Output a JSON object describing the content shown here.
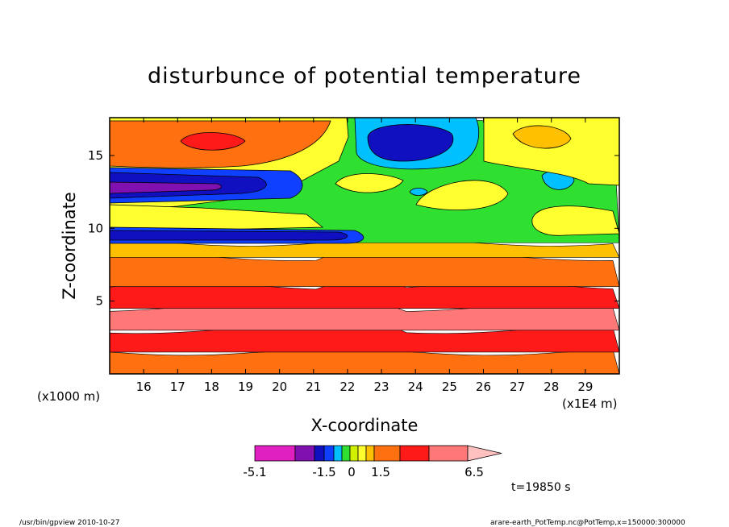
{
  "chart_data": {
    "type": "heatmap",
    "title": "disturbunce of potential temperature",
    "xlabel": "X-coordinate",
    "ylabel": "Z-coordinate",
    "x_unit": "(x1E4 m)",
    "y_unit": "(x1000 m)",
    "xlim": [
      15.0,
      30.0
    ],
    "ylim": [
      0.0,
      17.6
    ],
    "x_ticks": [
      "16",
      "17",
      "18",
      "19",
      "20",
      "21",
      "22",
      "23",
      "24",
      "25",
      "26",
      "27",
      "28",
      "29"
    ],
    "x_tick_values": [
      16,
      17,
      18,
      19,
      20,
      21,
      22,
      23,
      24,
      25,
      26,
      27,
      28,
      29
    ],
    "y_ticks": [
      "5",
      "10",
      "15"
    ],
    "y_tick_values": [
      5,
      10,
      15
    ],
    "colorbar": {
      "labels": [
        "-5.1",
        "-1.5",
        "0",
        "1.5",
        "6.5"
      ],
      "label_values": [
        -5.1,
        -1.5,
        0,
        1.5,
        6.5
      ],
      "colors": [
        "#e020c0",
        "#8010b0",
        "#1010c0",
        "#1040ff",
        "#00c0ff",
        "#30e030",
        "#d0f000",
        "#ffff30",
        "#ffc000",
        "#ff7010",
        "#ff1a1a",
        "#ff7878",
        "#ffc0c0"
      ]
    },
    "bands": [
      {
        "z0": 0.0,
        "z1": 1.5,
        "color": "#ff7010",
        "level": "orange"
      },
      {
        "z0": 1.5,
        "z1": 3.0,
        "color": "#ff1a1a",
        "level": "red"
      },
      {
        "z0": 3.0,
        "z1": 4.5,
        "color": "#ff7878",
        "level": "pink"
      },
      {
        "z0": 4.5,
        "z1": 6.0,
        "color": "#ff1a1a",
        "level": "red"
      },
      {
        "z0": 6.0,
        "z1": 8.0,
        "color": "#ff7010",
        "level": "orange"
      },
      {
        "z0": 8.0,
        "z1": 9.0,
        "color": "#ffc000",
        "level": "light-orange"
      },
      {
        "z0": 9.0,
        "z1": 17.6,
        "color": "#30e030",
        "level": "green"
      }
    ],
    "anomalies": [
      {
        "x": 20.5,
        "z": 16.0,
        "color": "#ff7010"
      },
      {
        "x": 18.2,
        "z": 15.8,
        "color": "#ff1a1a"
      },
      {
        "x": 24.2,
        "z": 16.0,
        "color": "#00c0ff"
      },
      {
        "x": 24.2,
        "z": 16.0,
        "color": "#1010c0"
      },
      {
        "x": 17.0,
        "z": 13.0,
        "color": "#1010c0"
      },
      {
        "x": 16.5,
        "z": 12.9,
        "color": "#8010b0"
      },
      {
        "x": 17.5,
        "z": 9.8,
        "color": "#1010c0"
      },
      {
        "x": 27.5,
        "z": 12.8,
        "color": "#00c0ff"
      },
      {
        "x": 25.3,
        "z": 12.4,
        "color": "#ffff30"
      },
      {
        "x": 22.5,
        "z": 12.8,
        "color": "#ffff30"
      },
      {
        "x": 28.2,
        "z": 10.6,
        "color": "#ffff30"
      },
      {
        "x": 28.8,
        "z": 16.5,
        "color": "#ffc000"
      }
    ]
  },
  "time_label": "t=19850 s",
  "footer_left": "/usr/bin/gpview   2010-10-27",
  "footer_right": "arare-earth_PotTemp.nc@PotTemp,x=150000:300000"
}
